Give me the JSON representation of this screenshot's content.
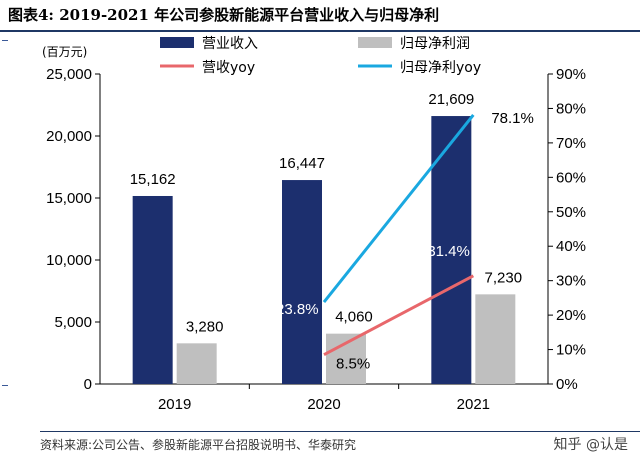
{
  "header": {
    "title": "图表4:  2019-2021 年公司参股新能源平台营业收入与归母净利"
  },
  "footer": {
    "source": "资料来源:公司公告、参股新能源平台招股说明书、华泰研究",
    "watermark": "知乎 @认是"
  },
  "colors": {
    "revenue": "#1c2f6e",
    "profit": "#bfbfbf",
    "revenue_yoy": "#e8676b",
    "profit_yoy": "#1aa8e0"
  },
  "chart_data": {
    "type": "bar",
    "categories": [
      "2019",
      "2020",
      "2021"
    ],
    "unit_label": "(百万元)",
    "ylim": [
      0,
      25000
    ],
    "y_ticks": [
      "0",
      "5,000",
      "10,000",
      "15,000",
      "20,000",
      "25,000"
    ],
    "y2lim": [
      0,
      90
    ],
    "y2_ticks": [
      "0%",
      "10%",
      "20%",
      "30%",
      "40%",
      "50%",
      "60%",
      "70%",
      "80%",
      "90%"
    ],
    "series": [
      {
        "name": "营业收入",
        "kind": "bar",
        "values": [
          15162,
          16447,
          21609
        ],
        "labels": [
          "15,162",
          "16,447",
          "21,609"
        ]
      },
      {
        "name": "归母净利润",
        "kind": "bar",
        "values": [
          3280,
          4060,
          7230
        ],
        "labels": [
          "3,280",
          "4,060",
          "7,230"
        ]
      },
      {
        "name": "营收yoy",
        "kind": "line",
        "axis": "right",
        "x": [
          "2020",
          "2021"
        ],
        "values": [
          8.5,
          31.4
        ],
        "labels": [
          "8.5%",
          "31.4%"
        ]
      },
      {
        "name": "归母净利yoy",
        "kind": "line",
        "axis": "right",
        "x": [
          "2020",
          "2021"
        ],
        "values": [
          23.8,
          78.1
        ],
        "labels": [
          "23.8%",
          "78.1%"
        ]
      }
    ],
    "legend_position": "top"
  }
}
